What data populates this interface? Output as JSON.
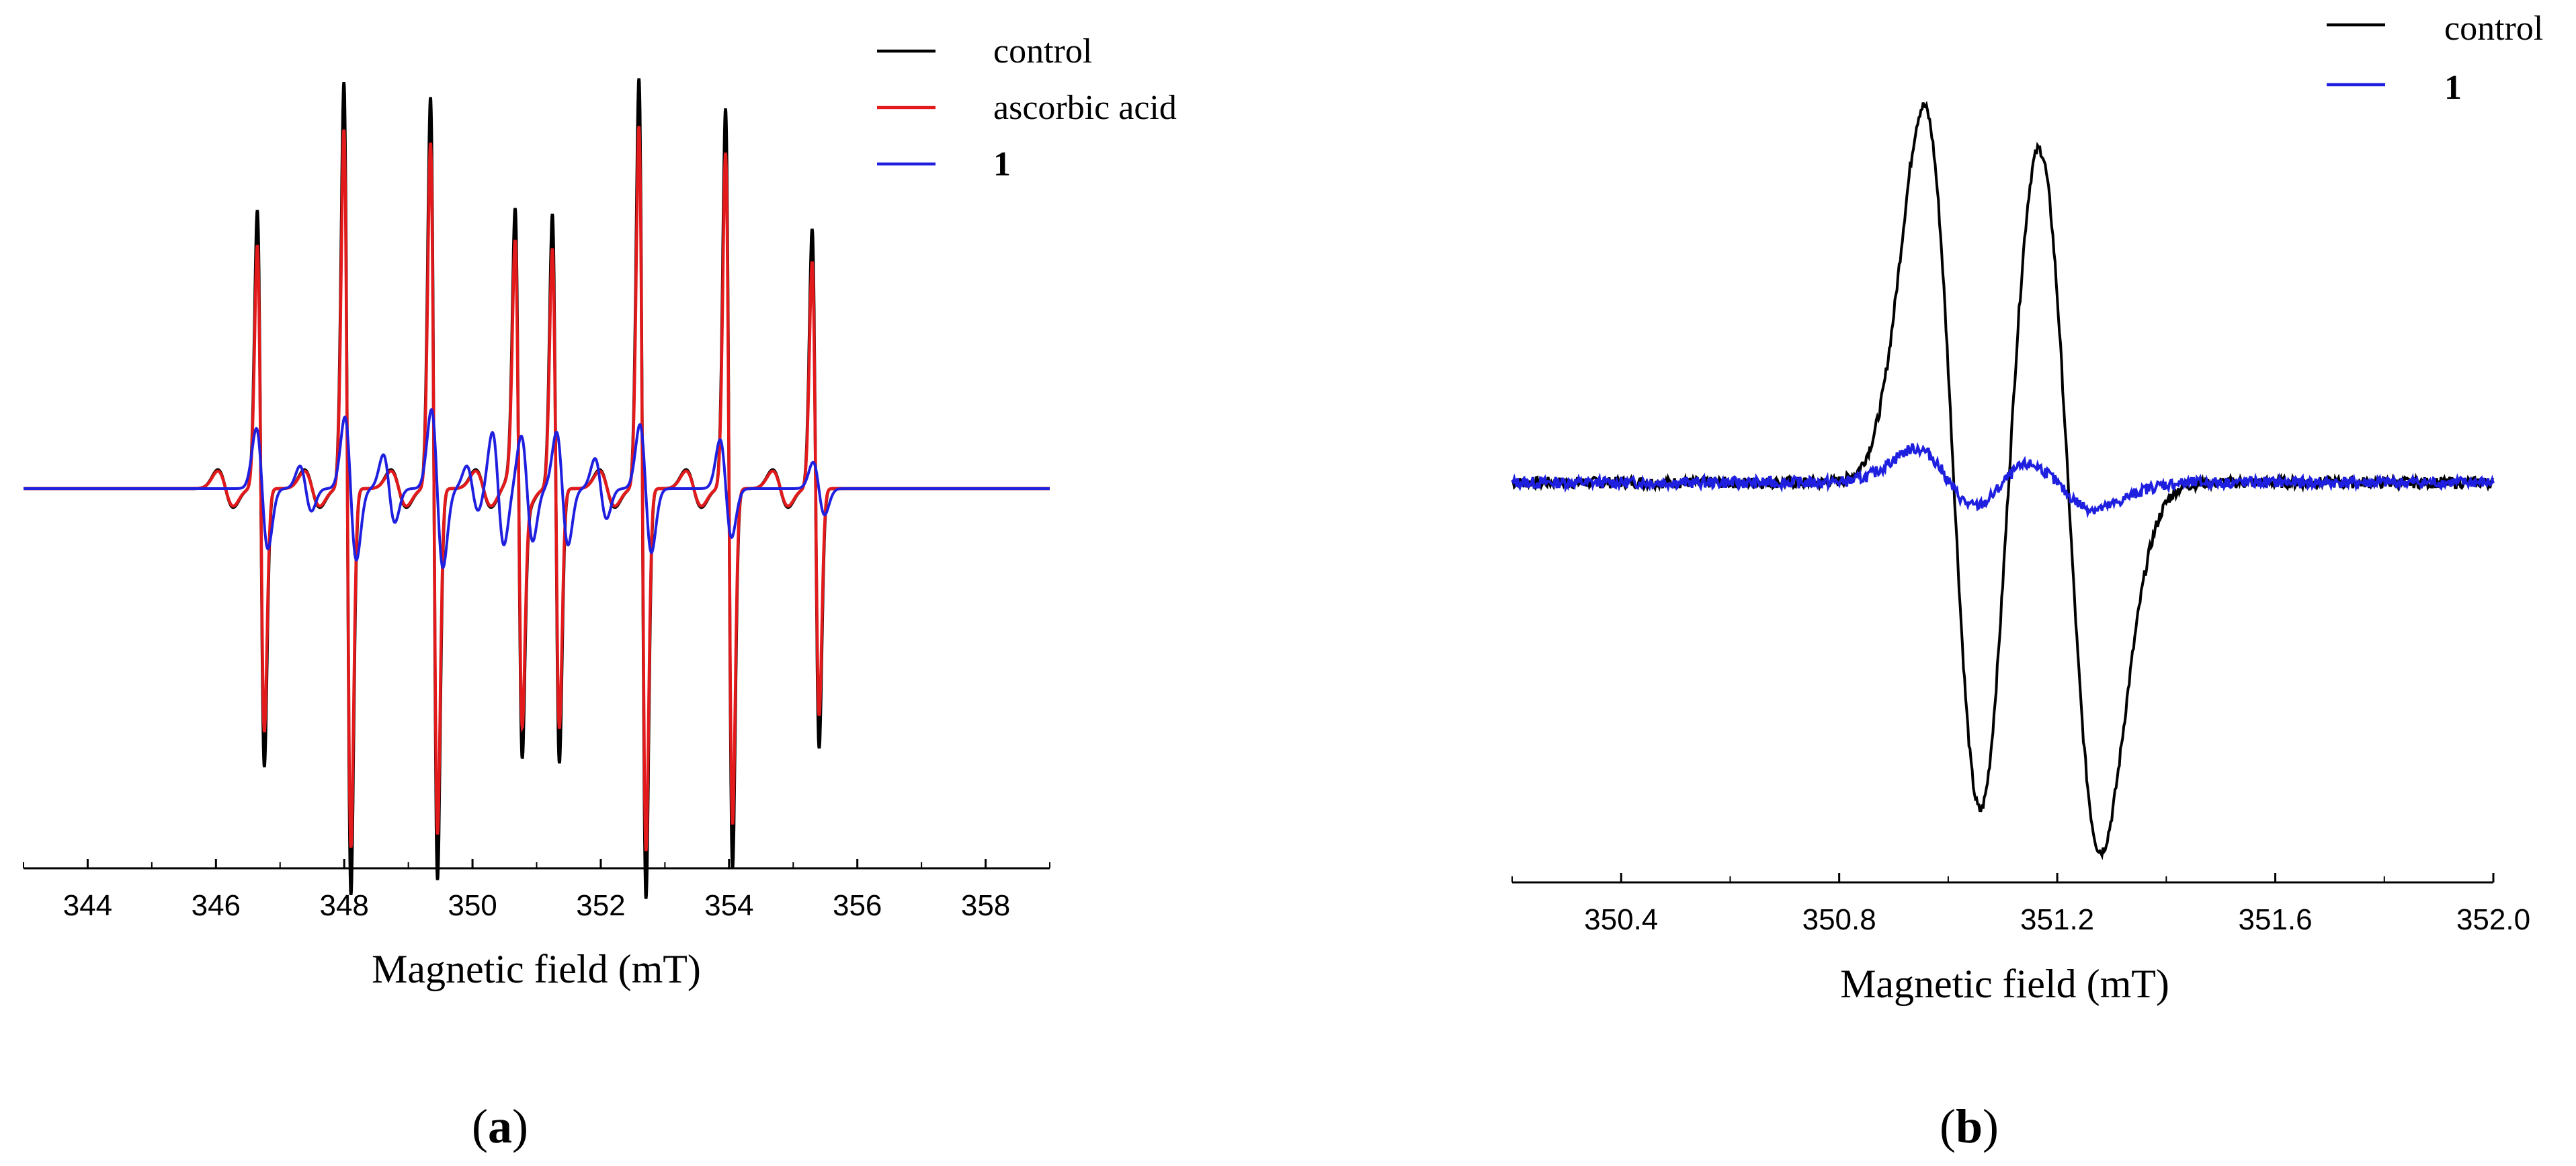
{
  "chart_data": [
    {
      "type": "line",
      "panel_label": "a",
      "xlabel": "Magnetic field (mT)",
      "ylabel": "",
      "xlim": [
        343.0,
        359.0
      ],
      "ylim": [
        -1.0,
        1.0
      ],
      "x_ticks": [
        344,
        346,
        348,
        350,
        352,
        354,
        356,
        358
      ],
      "legend_position": "top-right",
      "peaks": [
        {
          "center": 346.7,
          "amp": 0.74,
          "ar_ratio": 0.94
        },
        {
          "center": 348.05,
          "amp": 1.08,
          "ar_ratio": 0.95
        },
        {
          "center": 349.4,
          "amp": 1.04,
          "ar_ratio": 0.95
        },
        {
          "center": 350.72,
          "amp": 0.7,
          "ar_ratio": 0.95
        },
        {
          "center": 351.3,
          "amp": 0.73,
          "ar_ratio": 0.94
        },
        {
          "center": 352.65,
          "amp": 1.09,
          "ar_ratio": 0.95
        },
        {
          "center": 354.0,
          "amp": 1.01,
          "ar_ratio": 0.95
        },
        {
          "center": 355.35,
          "amp": 0.69,
          "ar_ratio": 0.94
        }
      ],
      "blue_peaks": [
        {
          "center": 346.72,
          "amp": 0.16
        },
        {
          "center": 348.1,
          "amp": 0.19
        },
        {
          "center": 349.45,
          "amp": 0.21
        },
        {
          "center": 350.4,
          "amp": 0.15
        },
        {
          "center": 350.85,
          "amp": 0.14
        },
        {
          "center": 351.4,
          "amp": 0.15
        },
        {
          "center": 352.7,
          "amp": 0.17
        },
        {
          "center": 353.95,
          "amp": 0.13
        },
        {
          "center": 355.4,
          "amp": 0.07
        },
        {
          "center": 347.4,
          "amp": 0.06
        },
        {
          "center": 348.7,
          "amp": 0.09
        },
        {
          "center": 350.0,
          "amp": 0.06
        },
        {
          "center": 352.0,
          "amp": 0.08
        }
      ],
      "series": [
        {
          "name": "control",
          "color": "#000000"
        },
        {
          "name": "ascorbic acid",
          "color": "#e31a1c"
        },
        {
          "name": "1",
          "color": "#1f1fe0",
          "bold": true
        }
      ]
    },
    {
      "type": "line",
      "panel_label": "b",
      "xlabel": "Magnetic field (mT)",
      "ylabel": "",
      "xlim": [
        350.2,
        352.0
      ],
      "ylim": [
        -1.0,
        1.0
      ],
      "x_ticks": [
        350.4,
        350.8,
        351.2,
        351.6,
        352.0
      ],
      "x_tick_labels": [
        "350.4",
        "350.8",
        "351.2",
        "351.6",
        "352.0"
      ],
      "legend_position": "top-right",
      "peaks": [
        {
          "center": 351.01,
          "amp": 1.0,
          "width": 0.055
        },
        {
          "center": 351.22,
          "amp": 0.98,
          "width": 0.06
        }
      ],
      "blue_peaks": [
        {
          "center": 351.0,
          "amp": 0.09,
          "width": 0.06
        },
        {
          "center": 351.2,
          "amp": 0.07,
          "width": 0.07
        }
      ],
      "series": [
        {
          "name": "control",
          "color": "#000000"
        },
        {
          "name": "1",
          "color": "#1f1fe0",
          "bold": true
        }
      ]
    }
  ]
}
